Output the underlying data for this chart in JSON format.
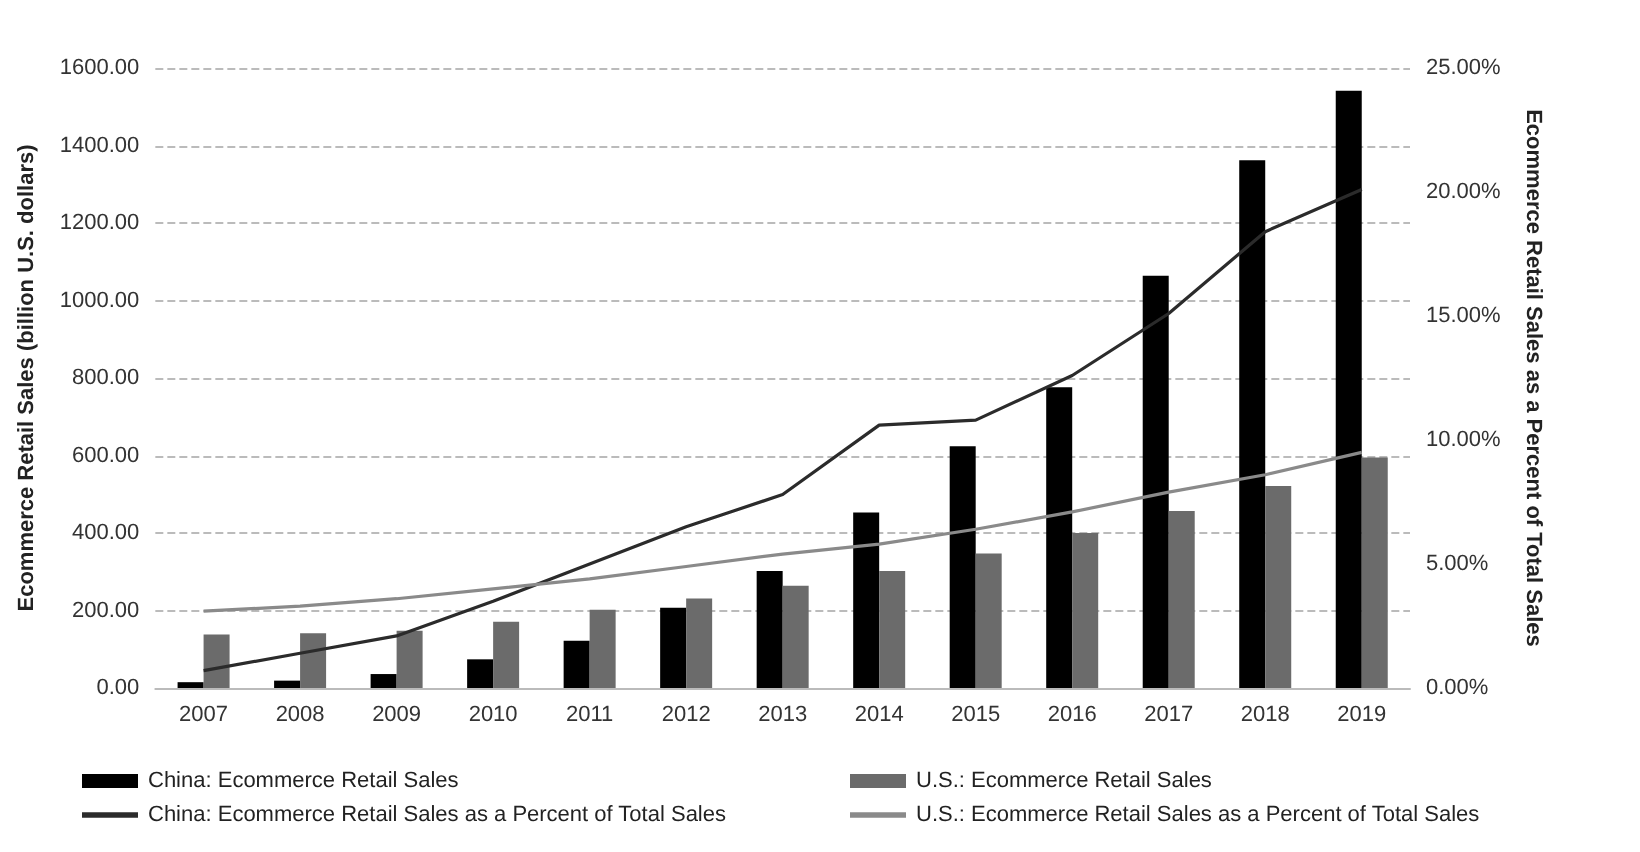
{
  "chart_data": {
    "type": "bar",
    "ylabel": "Ecommerce Retail Sales (billion U.S. dollars)",
    "y2label": "Ecommerce Retail Sales as a Percent of Total Sales",
    "categories": [
      "2007",
      "2008",
      "2009",
      "2010",
      "2011",
      "2012",
      "2013",
      "2014",
      "2015",
      "2016",
      "2017",
      "2018",
      "2019"
    ],
    "series": [
      {
        "name": "China: Ecommerce Retail Sales",
        "color": "#000000",
        "values": [
          15,
          19,
          36,
          74,
          122,
          207,
          302,
          453,
          624,
          776,
          1064,
          1362,
          1541
        ]
      },
      {
        "name": "U.S.: Ecommerce Retail Sales",
        "color": "#6b6b6b",
        "values": [
          138,
          141,
          148,
          171,
          202,
          231,
          264,
          302,
          347,
          400,
          457,
          521,
          595
        ]
      },
      {
        "name": "China: Ecommerce Retail Sales as a Percent of Total Sales",
        "type": "line",
        "axis": "y2",
        "color": "#2b2b2b",
        "values": [
          0.7,
          1.4,
          2.1,
          3.5,
          5.0,
          6.5,
          7.8,
          10.6,
          10.8,
          12.6,
          15.1,
          18.4,
          20.1
        ]
      },
      {
        "name": "U.S.: Ecommerce Retail Sales as a Percent of Total Sales",
        "type": "line",
        "axis": "y2",
        "color": "#8a8a8a",
        "values": [
          3.1,
          3.3,
          3.6,
          4.0,
          4.4,
          4.9,
          5.4,
          5.8,
          6.4,
          7.1,
          7.9,
          8.6,
          9.5
        ]
      }
    ],
    "ylim": [
      0,
      1600
    ],
    "yticks": [
      {
        "value": 0,
        "label": "0.00"
      },
      {
        "value": 200,
        "label": "200.00"
      },
      {
        "value": 400,
        "label": "400.00"
      },
      {
        "value": 600,
        "label": "600.00"
      },
      {
        "value": 800,
        "label": "800.00"
      },
      {
        "value": 1000,
        "label": "1000.00"
      },
      {
        "value": 1200,
        "label": "1200.00"
      },
      {
        "value": 1400,
        "label": "1400.00"
      },
      {
        "value": 1600,
        "label": "1600.00"
      }
    ],
    "y2lim": [
      0,
      25
    ],
    "y2ticks": [
      {
        "value": 0,
        "label": "0.00%"
      },
      {
        "value": 5,
        "label": "5.00%"
      },
      {
        "value": 10,
        "label": "10.00%"
      },
      {
        "value": 15,
        "label": "15.00%"
      },
      {
        "value": 20,
        "label": "20.00%"
      },
      {
        "value": 25,
        "label": "25.00%"
      }
    ],
    "grid": "y",
    "legend": "bottom",
    "marker": "none",
    "line_style": "solid"
  }
}
